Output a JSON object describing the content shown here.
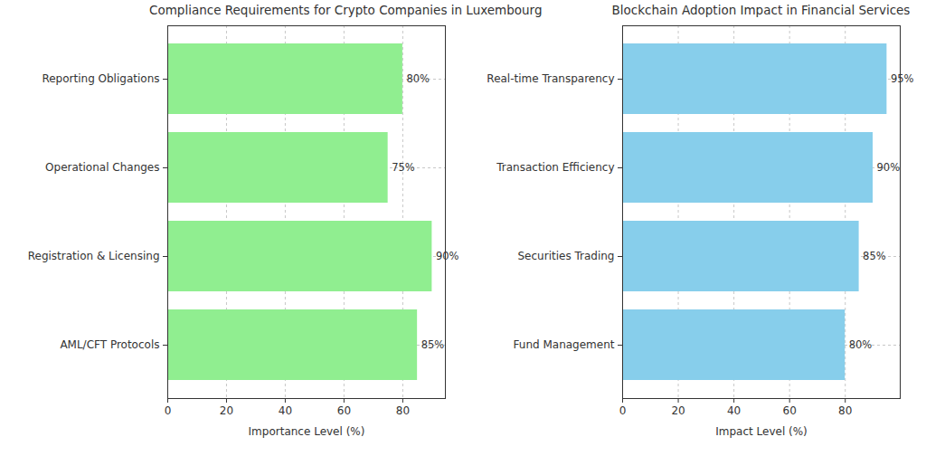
{
  "chart_data": [
    {
      "type": "bar",
      "orientation": "horizontal",
      "title": "Compliance Requirements for Crypto Companies in Luxembourg",
      "xlabel": "Importance Level (%)",
      "categories": [
        "Reporting Obligations",
        "Operational Changes",
        "Registration & Licensing",
        "AML/CFT Protocols"
      ],
      "values": [
        80,
        75,
        90,
        85
      ],
      "value_labels": [
        "80%",
        "75%",
        "90%",
        "85%"
      ],
      "color": "#90ee90",
      "xlim": [
        0,
        94.5
      ],
      "xticks": [
        0,
        20,
        40,
        60,
        80
      ],
      "grid": true,
      "data_labels": true
    },
    {
      "type": "bar",
      "orientation": "horizontal",
      "title": "Blockchain Adoption Impact in Financial Services",
      "xlabel": "Impact Level (%)",
      "categories": [
        "Real-time Transparency",
        "Transaction Efficiency",
        "Securities Trading",
        "Fund Management"
      ],
      "values": [
        95,
        90,
        85,
        80
      ],
      "value_labels": [
        "95%",
        "90%",
        "85%",
        "80%"
      ],
      "color": "#87ceeb",
      "xlim": [
        0,
        99.75
      ],
      "xticks": [
        0,
        20,
        40,
        60,
        80
      ],
      "grid": true,
      "data_labels": true
    }
  ]
}
